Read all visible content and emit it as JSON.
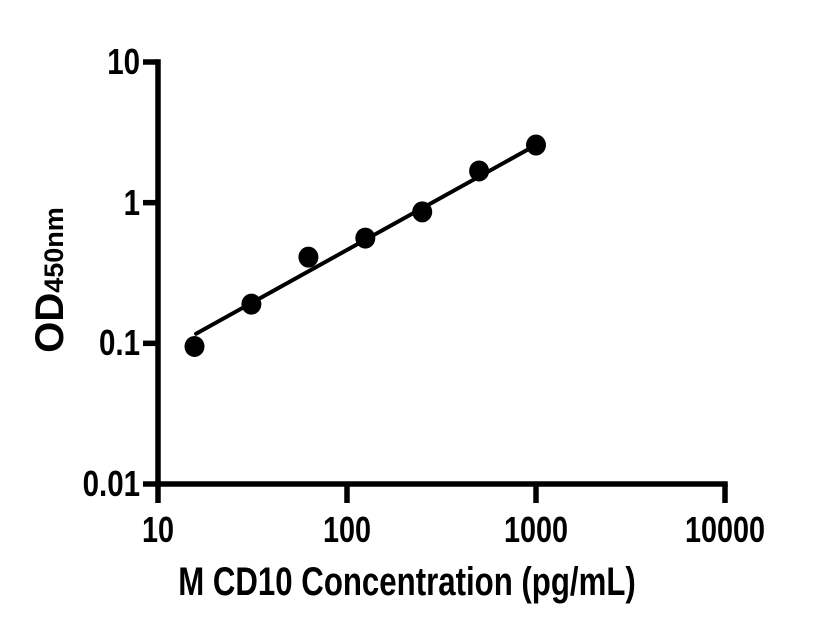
{
  "figure": {
    "background_color": "#ffffff",
    "ink_color": "#000000"
  },
  "chart_data": {
    "type": "scatter",
    "title": "",
    "xlabel": "M CD10 Concentration (pg/mL)",
    "ylabel_main": "OD",
    "ylabel_subscript": "450nm",
    "x_scale": "log",
    "y_scale": "log",
    "xlim": [
      10,
      10000
    ],
    "ylim": [
      0.01,
      10
    ],
    "x_ticks": [
      10,
      100,
      1000,
      10000
    ],
    "x_tick_labels": [
      "10",
      "100",
      "1000",
      "10000"
    ],
    "y_ticks": [
      10,
      1,
      0.1,
      0.01
    ],
    "y_tick_labels": [
      "10",
      "1",
      "0.1",
      "0.01"
    ],
    "grid": false,
    "legend": "none",
    "series": [
      {
        "name": "standard-curve-points",
        "marker": "filled-circle",
        "color": "#000000",
        "points": [
          {
            "x": 15.6,
            "y": 0.095
          },
          {
            "x": 31.2,
            "y": 0.19
          },
          {
            "x": 62.5,
            "y": 0.41
          },
          {
            "x": 125,
            "y": 0.56
          },
          {
            "x": 250,
            "y": 0.86
          },
          {
            "x": 500,
            "y": 1.68
          },
          {
            "x": 1000,
            "y": 2.57
          }
        ]
      }
    ],
    "fit_line": {
      "color": "#000000",
      "points": [
        {
          "x": 15.9,
          "y": 0.117
        },
        {
          "x": 1005,
          "y": 2.58
        }
      ]
    }
  }
}
